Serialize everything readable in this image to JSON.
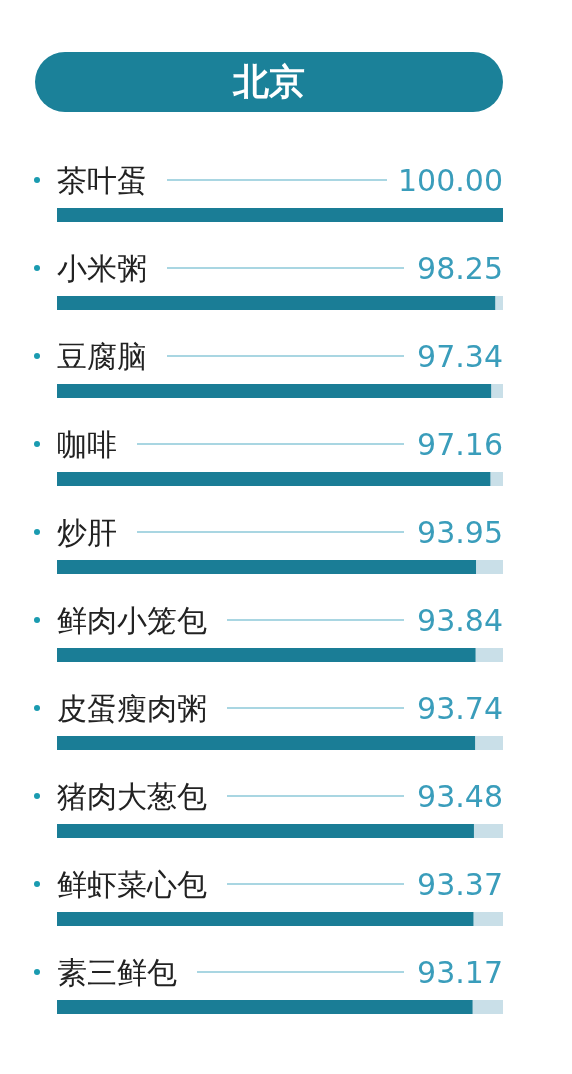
{
  "chart_data": {
    "type": "bar",
    "orientation": "horizontal",
    "title": "北京",
    "categories": [
      "茶叶蛋",
      "小米粥",
      "豆腐脑",
      "咖啡",
      "炒肝",
      "鲜肉小笼包",
      "皮蛋瘦肉粥",
      "猪肉大葱包",
      "鲜虾菜心包",
      "素三鲜包"
    ],
    "values": [
      100.0,
      98.25,
      97.34,
      97.16,
      93.95,
      93.84,
      93.74,
      93.48,
      93.37,
      93.17
    ],
    "value_labels": [
      "100.00",
      "98.25",
      "97.34",
      "97.16",
      "93.95",
      "93.84",
      "93.74",
      "93.48",
      "93.37",
      "93.17"
    ],
    "color": "#1a7d96"
  }
}
